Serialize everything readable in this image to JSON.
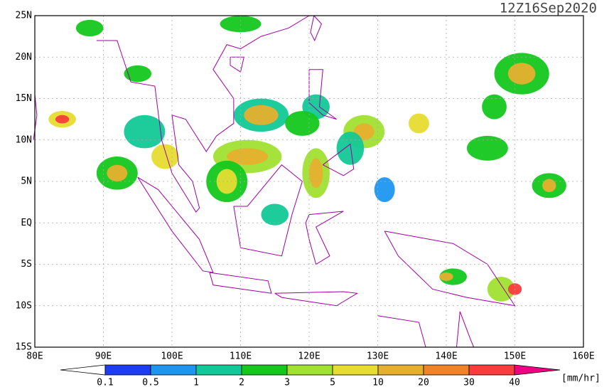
{
  "title": "12Z16Sep2020",
  "map": {
    "lat_labels": [
      "25N",
      "20N",
      "15N",
      "10N",
      "5N",
      "EQ",
      "5S",
      "10S",
      "15S"
    ],
    "lon_labels": [
      "80E",
      "90E",
      "100E",
      "110E",
      "120E",
      "130E",
      "140E",
      "150E",
      "160E"
    ],
    "grid": true
  },
  "colorbar": {
    "labels": [
      "0.1",
      "0.5",
      "1",
      "2",
      "3",
      "5",
      "10",
      "20",
      "30",
      "40"
    ],
    "colors": [
      "#1f3cf5",
      "#1e96f0",
      "#12c896",
      "#14c81e",
      "#a0e132",
      "#e6dc32",
      "#e6af2d",
      "#f08228",
      "#fa3c3c",
      "#f00082"
    ],
    "unit": "[mm/hr]"
  }
}
